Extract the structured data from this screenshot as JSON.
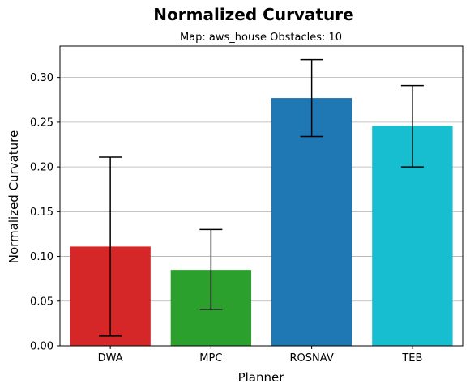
{
  "chart_data": {
    "type": "bar",
    "title": "Normalized Curvature",
    "subtitle": "Map: aws_house Obstacles: 10",
    "xlabel": "Planner",
    "ylabel": "Normalized Curvature",
    "categories": [
      "DWA",
      "MPC",
      "ROSNAV",
      "TEB"
    ],
    "values": [
      0.111,
      0.085,
      0.277,
      0.246
    ],
    "error_low": [
      0.011,
      0.041,
      0.234,
      0.2
    ],
    "error_high": [
      0.211,
      0.13,
      0.32,
      0.291
    ],
    "colors": [
      "#d62728",
      "#2ca02c",
      "#1f77b4",
      "#17becf"
    ],
    "ylim": [
      0,
      0.335
    ],
    "yticks": [
      0.0,
      0.05,
      0.1,
      0.15,
      0.2,
      0.25,
      0.3
    ],
    "ytick_labels": [
      "0.00",
      "0.05",
      "0.10",
      "0.15",
      "0.20",
      "0.25",
      "0.30"
    ],
    "grid": "y"
  }
}
